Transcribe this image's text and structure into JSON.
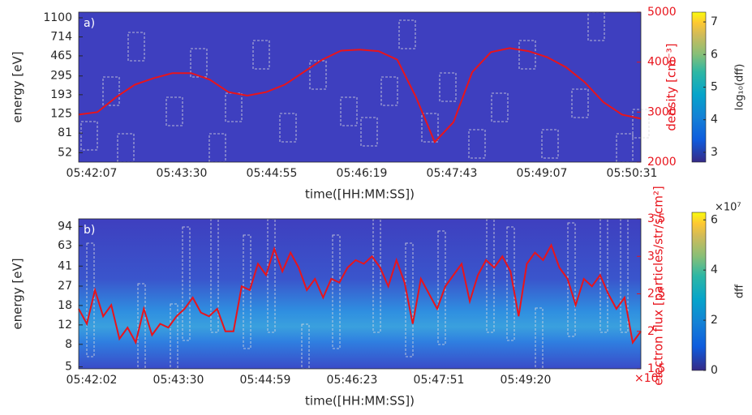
{
  "chart_data": [
    {
      "type": "line",
      "label": "a)",
      "xlabel": "time([HH:MM:SS])",
      "ylabel": "energy [eV]",
      "y2label": "density [cm⁻³]",
      "xtick_labels": [
        "05:42:07",
        "05:43:30",
        "05:44:55",
        "05:46:19",
        "05:47:43",
        "05:49:07",
        "05:50:31"
      ],
      "ylog": true,
      "ylim": [
        42,
        1250
      ],
      "yticks": [
        52,
        81,
        125,
        193,
        295,
        465,
        714,
        1100
      ],
      "y2lim": [
        2000,
        5000
      ],
      "y2ticks": [
        2000,
        3000,
        4000,
        5000
      ],
      "series": [
        {
          "color": "#e8141c",
          "axis": "y2",
          "values": [
            2950,
            3000,
            3300,
            3550,
            3680,
            3780,
            3780,
            3650,
            3400,
            3330,
            3400,
            3550,
            3800,
            4050,
            4230,
            4250,
            4220,
            4050,
            3300,
            2400,
            2800,
            3800,
            4200,
            4280,
            4220,
            4100,
            3900,
            3600,
            3200,
            2950,
            2870
          ]
        }
      ],
      "colorbar": {
        "label": "log₁₀(dff)",
        "lim": [
          2.7,
          7.3
        ],
        "ticks": [
          3,
          4,
          5,
          6,
          7
        ]
      }
    },
    {
      "type": "line",
      "label": "b)",
      "xlabel": "time([HH:MM:SS])",
      "ylabel": "energy [eV]",
      "y2label": "electron flux [particles/str/s/cm²]",
      "y2multiplier": "×10⁹",
      "xtick_labels": [
        "05:42:02",
        "05:43:30",
        "05:44:59",
        "05:46:23",
        "05:47:51",
        "05:49:20"
      ],
      "ylog": true,
      "ylim": [
        4.8,
        110
      ],
      "yticks": [
        5,
        8,
        12,
        18,
        27,
        41,
        63,
        94
      ],
      "y2lim": [
        1.5,
        3.5
      ],
      "y2ticks": [
        1.5,
        2,
        2.5,
        3,
        3.5
      ],
      "series": [
        {
          "color": "#e8141c",
          "axis": "y2",
          "values": [
            2.3,
            2.1,
            2.55,
            2.2,
            2.35,
            1.9,
            2.05,
            1.85,
            2.3,
            1.95,
            2.1,
            2.05,
            2.2,
            2.3,
            2.45,
            2.25,
            2.2,
            2.3,
            2.0,
            2.0,
            2.6,
            2.55,
            2.9,
            2.75,
            3.1,
            2.8,
            3.05,
            2.85,
            2.55,
            2.7,
            2.45,
            2.7,
            2.65,
            2.85,
            2.95,
            2.9,
            3.0,
            2.85,
            2.6,
            2.95,
            2.65,
            2.1,
            2.7,
            2.5,
            2.3,
            2.6,
            2.75,
            2.9,
            2.4,
            2.75,
            2.95,
            2.85,
            3.0,
            2.8,
            2.2,
            2.9,
            3.05,
            2.95,
            3.15,
            2.85,
            2.7,
            2.35,
            2.7,
            2.6,
            2.75,
            2.5,
            2.3,
            2.45,
            1.85,
            2.0
          ]
        }
      ],
      "colorbar": {
        "label": "dff",
        "lim": [
          0,
          6.3
        ],
        "ticks": [
          0,
          2,
          4,
          6
        ],
        "multiplier": "×10⁷"
      }
    }
  ]
}
